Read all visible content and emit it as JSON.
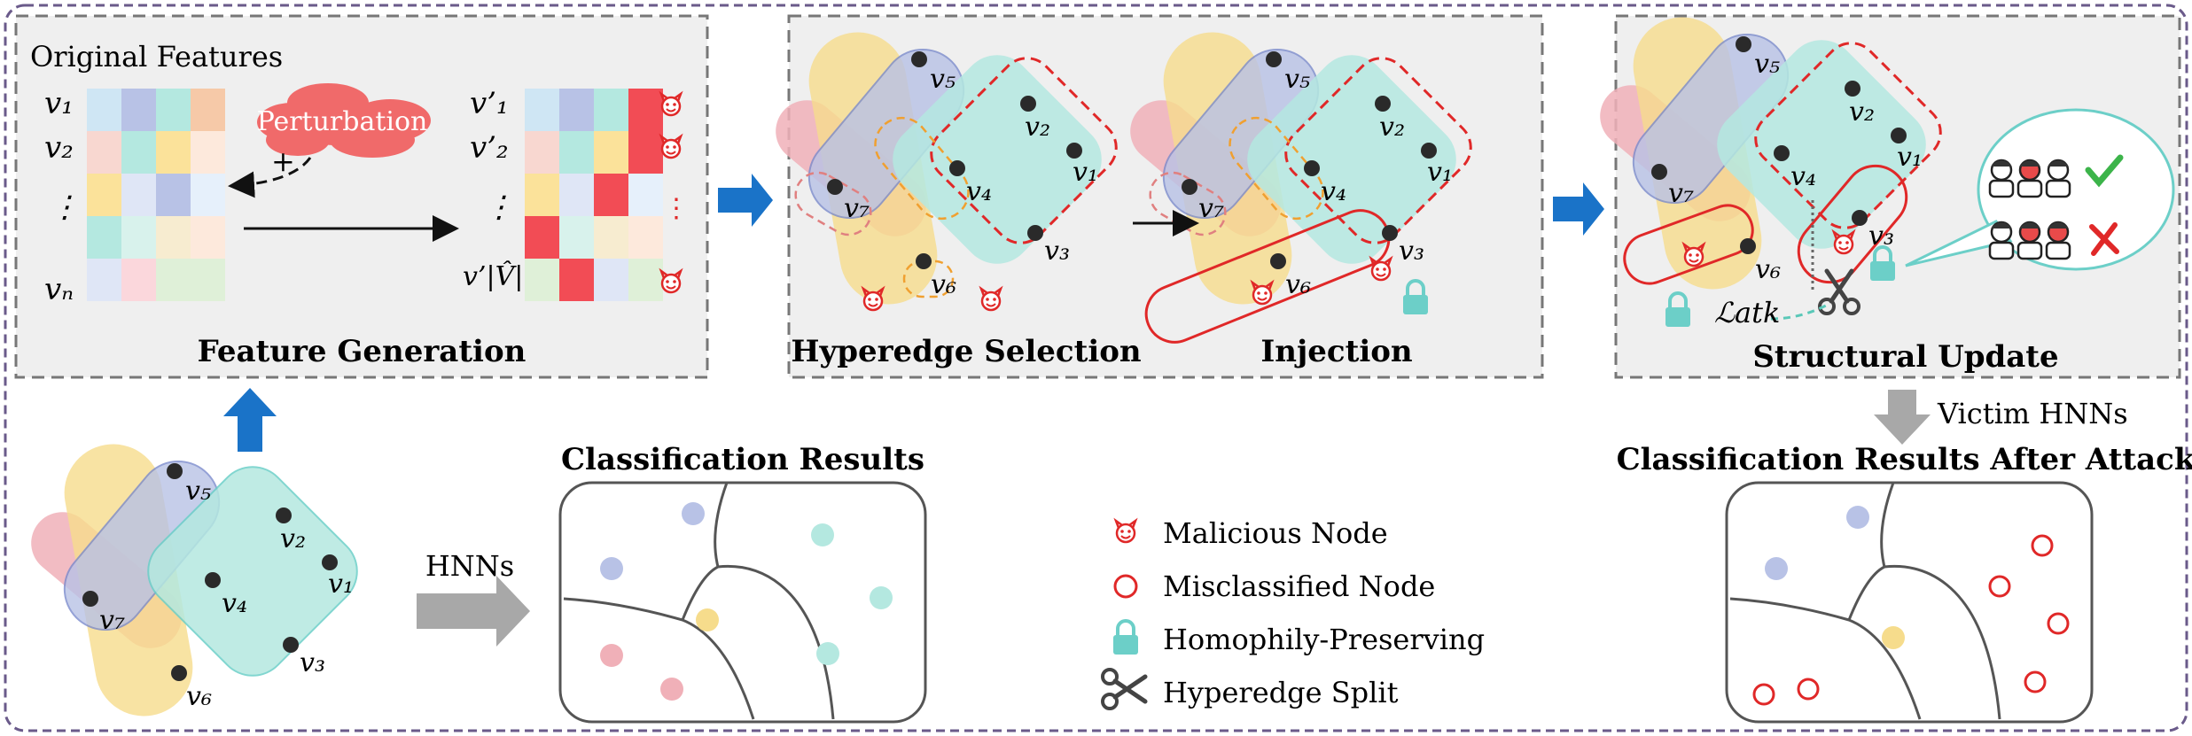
{
  "panels": {
    "feature_generation": {
      "heading": "Original Features",
      "caption": "Feature Generation",
      "perturbation": "Perturbation",
      "plus": "+",
      "left_rows": [
        "v₁",
        "v₂",
        "⋮",
        "vₙ"
      ],
      "right_rows": [
        "v’₁",
        "v’₂",
        "⋮",
        "v’|V̂|"
      ],
      "right_dots": "⋮"
    },
    "hyperedge_selection": {
      "caption": "Hyperedge Selection"
    },
    "injection": {
      "caption": "Injection"
    },
    "structural_update": {
      "caption": "Structural Update",
      "loss": "ℒatk"
    }
  },
  "nodes": {
    "v1": "v₁",
    "v2": "v₂",
    "v3": "v₃",
    "v4": "v₄",
    "v5": "v₅",
    "v6": "v₆",
    "v7": "v₇"
  },
  "bottom": {
    "hnns_label": "HNNs",
    "victim_label": "Victim HNNs",
    "results_title": "Classification Results",
    "results_after_title": "Classification Results After Attack"
  },
  "legend": {
    "malicious": "Malicious Node",
    "misclassified": "Misclassified Node",
    "homophily": "Homophily-Preserving",
    "split": "Hyperedge Split"
  },
  "colors": {
    "blue_edge": "#b8c2e6",
    "yellow_edge": "#f6dc8c",
    "cyan_edge": "#b4e8e0",
    "pink_edge": "#f0b0b8",
    "red": "#e02828",
    "teal_lock": "#6ccfc8",
    "arrow_blue": "#1a73c8",
    "arrow_gray": "#a8a8a8"
  }
}
